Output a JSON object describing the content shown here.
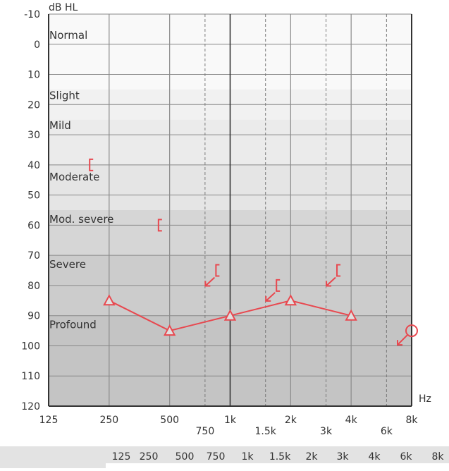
{
  "chart_data": {
    "type": "scatter",
    "title": "",
    "xlabel": "Hz",
    "ylabel": "dB HL",
    "x_scale": "log2",
    "xlim": [
      125,
      8000
    ],
    "ylim": [
      -10,
      120
    ],
    "y_inverted": true,
    "grid": true,
    "x_ticks_primary": [
      {
        "hz": 125,
        "label": "125"
      },
      {
        "hz": 250,
        "label": "250"
      },
      {
        "hz": 500,
        "label": "500"
      },
      {
        "hz": 1000,
        "label": "1k"
      },
      {
        "hz": 2000,
        "label": "2k"
      },
      {
        "hz": 4000,
        "label": "4k"
      },
      {
        "hz": 8000,
        "label": "8k"
      }
    ],
    "x_ticks_secondary": [
      {
        "hz": 750,
        "label": "750"
      },
      {
        "hz": 1500,
        "label": "1.5k"
      },
      {
        "hz": 3000,
        "label": "3k"
      },
      {
        "hz": 6000,
        "label": "6k"
      }
    ],
    "y_ticks": [
      -10,
      0,
      10,
      20,
      30,
      40,
      50,
      60,
      70,
      80,
      90,
      100,
      110,
      120
    ],
    "bands": [
      {
        "label": "Normal",
        "from": -10,
        "to": 15,
        "color": "#f9f9f9"
      },
      {
        "label": "Slight",
        "from": 15,
        "to": 25,
        "color": "#f1f1f1"
      },
      {
        "label": "Mild",
        "from": 25,
        "to": 40,
        "color": "#ebebeb"
      },
      {
        "label": "Moderate",
        "from": 40,
        "to": 55,
        "color": "#e5e5e5"
      },
      {
        "label": "Mod. severe",
        "from": 55,
        "to": 70,
        "color": "#d6d6d6"
      },
      {
        "label": "Severe",
        "from": 70,
        "to": 90,
        "color": "#cccccc"
      },
      {
        "label": "Profound",
        "from": 90,
        "to": 120,
        "color": "#c4c4c4"
      }
    ],
    "band_label_values": {
      "Normal": -3,
      "Slight": 17,
      "Mild": 27,
      "Moderate": 44,
      "Mod. severe": 58,
      "Severe": 73,
      "Profound": 93
    },
    "colors": {
      "series": "#e8484f",
      "axis": "#333333",
      "grid": "#777777"
    },
    "series": [
      {
        "marker": "triangle",
        "connected": true,
        "points": [
          {
            "hz": 250,
            "db": 85
          },
          {
            "hz": 500,
            "db": 95
          },
          {
            "hz": 1000,
            "db": 90
          },
          {
            "hz": 2000,
            "db": 85
          },
          {
            "hz": 4000,
            "db": 90
          }
        ]
      },
      {
        "marker": "circle-no-response",
        "connected": false,
        "points": [
          {
            "hz": 8000,
            "db": 95
          }
        ]
      },
      {
        "marker": "bracket",
        "connected": false,
        "points": [
          {
            "hz": 200,
            "db": 40,
            "no_response": false
          },
          {
            "hz": 440,
            "db": 60,
            "no_response": false
          },
          {
            "hz": 850,
            "db": 75,
            "no_response": true
          },
          {
            "hz": 1700,
            "db": 80,
            "no_response": true
          },
          {
            "hz": 3400,
            "db": 75,
            "no_response": true
          }
        ]
      }
    ]
  },
  "table": {
    "columns": [
      "125",
      "250",
      "500",
      "750",
      "1k",
      "1.5k",
      "2k",
      "3k",
      "4k",
      "6k",
      "8k"
    ]
  }
}
